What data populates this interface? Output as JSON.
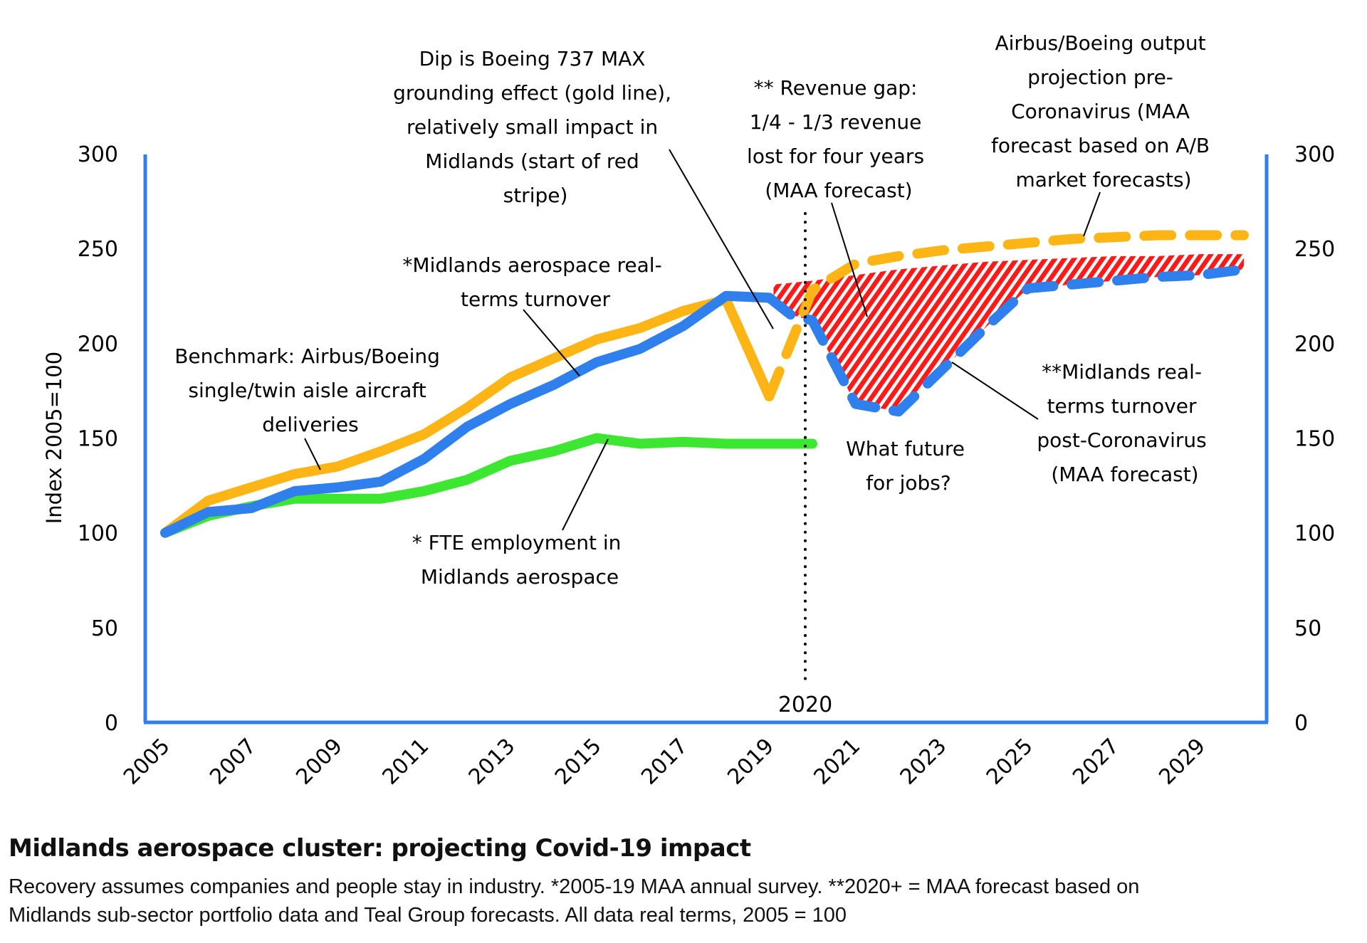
{
  "caption": {
    "title": "Midlands aerospace cluster: projecting Covid-19 impact",
    "line1": "Recovery assumes companies and people stay in industry. *2005-19 MAA annual survey. **2020+ = MAA forecast based on",
    "line2": "Midlands sub-sector portfolio data and Teal Group forecasts. All data real terms, 2005 = 100"
  },
  "colors": {
    "axis": "#2f80ed",
    "gold": "#fdb515",
    "blue": "#2f80ed",
    "green": "#3de630",
    "gap": "#ff1a1a"
  },
  "chart_data": {
    "type": "line",
    "title": "Midlands aerospace cluster: projecting Covid-19 impact",
    "xlabel": "",
    "ylabel": "Index 2005=100",
    "xlim": [
      2005,
      2030
    ],
    "ylim": [
      0,
      300
    ],
    "yticks": [
      0,
      50,
      100,
      150,
      200,
      250,
      300
    ],
    "ytick_labels": [
      "0",
      "50",
      "100",
      "150",
      "200",
      "250",
      "300"
    ],
    "xtick_labels": [
      "2005",
      "2007",
      "2009",
      "2011",
      "2013",
      "2015",
      "2017",
      "2019",
      "2021",
      "2023",
      "2025",
      "2027",
      "2029"
    ],
    "grid": false,
    "legend": "none",
    "vertical_marker": {
      "x": 2020,
      "label": "2020",
      "style": "dotted"
    },
    "series": [
      {
        "name": "Benchmark: Airbus/Boeing single/twin aisle aircraft deliveries",
        "style": "solid",
        "color": "gold",
        "x": [
          2005,
          2006,
          2007,
          2008,
          2009,
          2010,
          2011,
          2012,
          2013,
          2014,
          2015,
          2016,
          2017,
          2018,
          2019
        ],
        "values": [
          100,
          117,
          124,
          131,
          135,
          143,
          152,
          166,
          182,
          192,
          202,
          208,
          217,
          223,
          172
        ]
      },
      {
        "name": "Airbus/Boeing output projection pre-Coronavirus (MAA forecast based on A/B market forecasts)",
        "style": "dashed",
        "color": "gold",
        "x": [
          2019,
          2020,
          2021,
          2022,
          2023,
          2024,
          2025,
          2026,
          2027,
          2028,
          2029,
          2030
        ],
        "values": [
          172,
          228,
          242,
          246,
          249,
          251,
          253,
          255,
          256,
          257,
          257,
          257
        ]
      },
      {
        "name": "*Midlands aerospace real-terms turnover",
        "style": "solid",
        "color": "blue",
        "x": [
          2005,
          2006,
          2007,
          2008,
          2009,
          2010,
          2011,
          2012,
          2013,
          2014,
          2015,
          2016,
          2017,
          2018,
          2019
        ],
        "values": [
          100,
          111,
          113,
          122,
          124,
          127,
          139,
          156,
          168,
          178,
          190,
          197,
          209,
          225,
          224
        ]
      },
      {
        "name": "**Midlands real-terms turnover post-Coronavirus (MAA forecast)",
        "style": "dashed",
        "color": "blue",
        "x": [
          2019,
          2019.5,
          2020,
          2021,
          2022,
          2023,
          2024,
          2025,
          2026,
          2027,
          2028,
          2029,
          2030
        ],
        "values": [
          224,
          215,
          212,
          168,
          164,
          186,
          208,
          229,
          231,
          233,
          235,
          236,
          239
        ]
      },
      {
        "name": "* FTE employment in Midlands aerospace",
        "style": "solid",
        "color": "green",
        "x": [
          2005,
          2006,
          2007,
          2008,
          2009,
          2010,
          2011,
          2012,
          2013,
          2014,
          2015,
          2016,
          2017,
          2018,
          2019,
          2020
        ],
        "values": [
          100,
          109,
          114,
          118,
          118,
          118,
          122,
          128,
          138,
          143,
          150,
          147,
          148,
          147,
          147,
          147
        ]
      }
    ],
    "gap_area": {
      "name": "Revenue gap",
      "pattern": "red diagonal stripes",
      "x": [
        2019.1,
        2020,
        2021,
        2022,
        2023,
        2024,
        2025,
        2026,
        2027,
        2028,
        2029,
        2030
      ],
      "upper": [
        231,
        233,
        236,
        239,
        241,
        243,
        244,
        245,
        246,
        246,
        247,
        247
      ]
    },
    "annotations": [
      {
        "id": "dip",
        "lines": [
          "Dip is Boeing 737 MAX",
          "grounding effect (gold line),",
          "relatively small impact in",
          "Midlands (start of red",
          "stripe)"
        ]
      },
      {
        "id": "revenue-gap",
        "lines": [
          "** Revenue gap:",
          "1/4 - 1/3 revenue",
          "lost for four years",
          "(MAA forecast)"
        ]
      },
      {
        "id": "ab-projection",
        "lines": [
          "Airbus/Boeing output",
          "projection pre-",
          "Coronavirus (MAA",
          "forecast based on A/B",
          "market forecasts)"
        ]
      },
      {
        "id": "midlands-turnover",
        "lines": [
          "*Midlands aerospace real-",
          "terms turnover"
        ]
      },
      {
        "id": "benchmark",
        "lines": [
          "Benchmark: Airbus/Boeing",
          "single/twin aisle aircraft",
          "deliveries"
        ]
      },
      {
        "id": "post-covid",
        "lines": [
          "**Midlands real-",
          "terms turnover",
          "post-Coronavirus",
          "(MAA forecast)"
        ]
      },
      {
        "id": "jobs",
        "lines": [
          "What future",
          "for jobs?"
        ]
      },
      {
        "id": "fte",
        "lines": [
          "* FTE employment in",
          "Midlands aerospace"
        ]
      }
    ]
  }
}
